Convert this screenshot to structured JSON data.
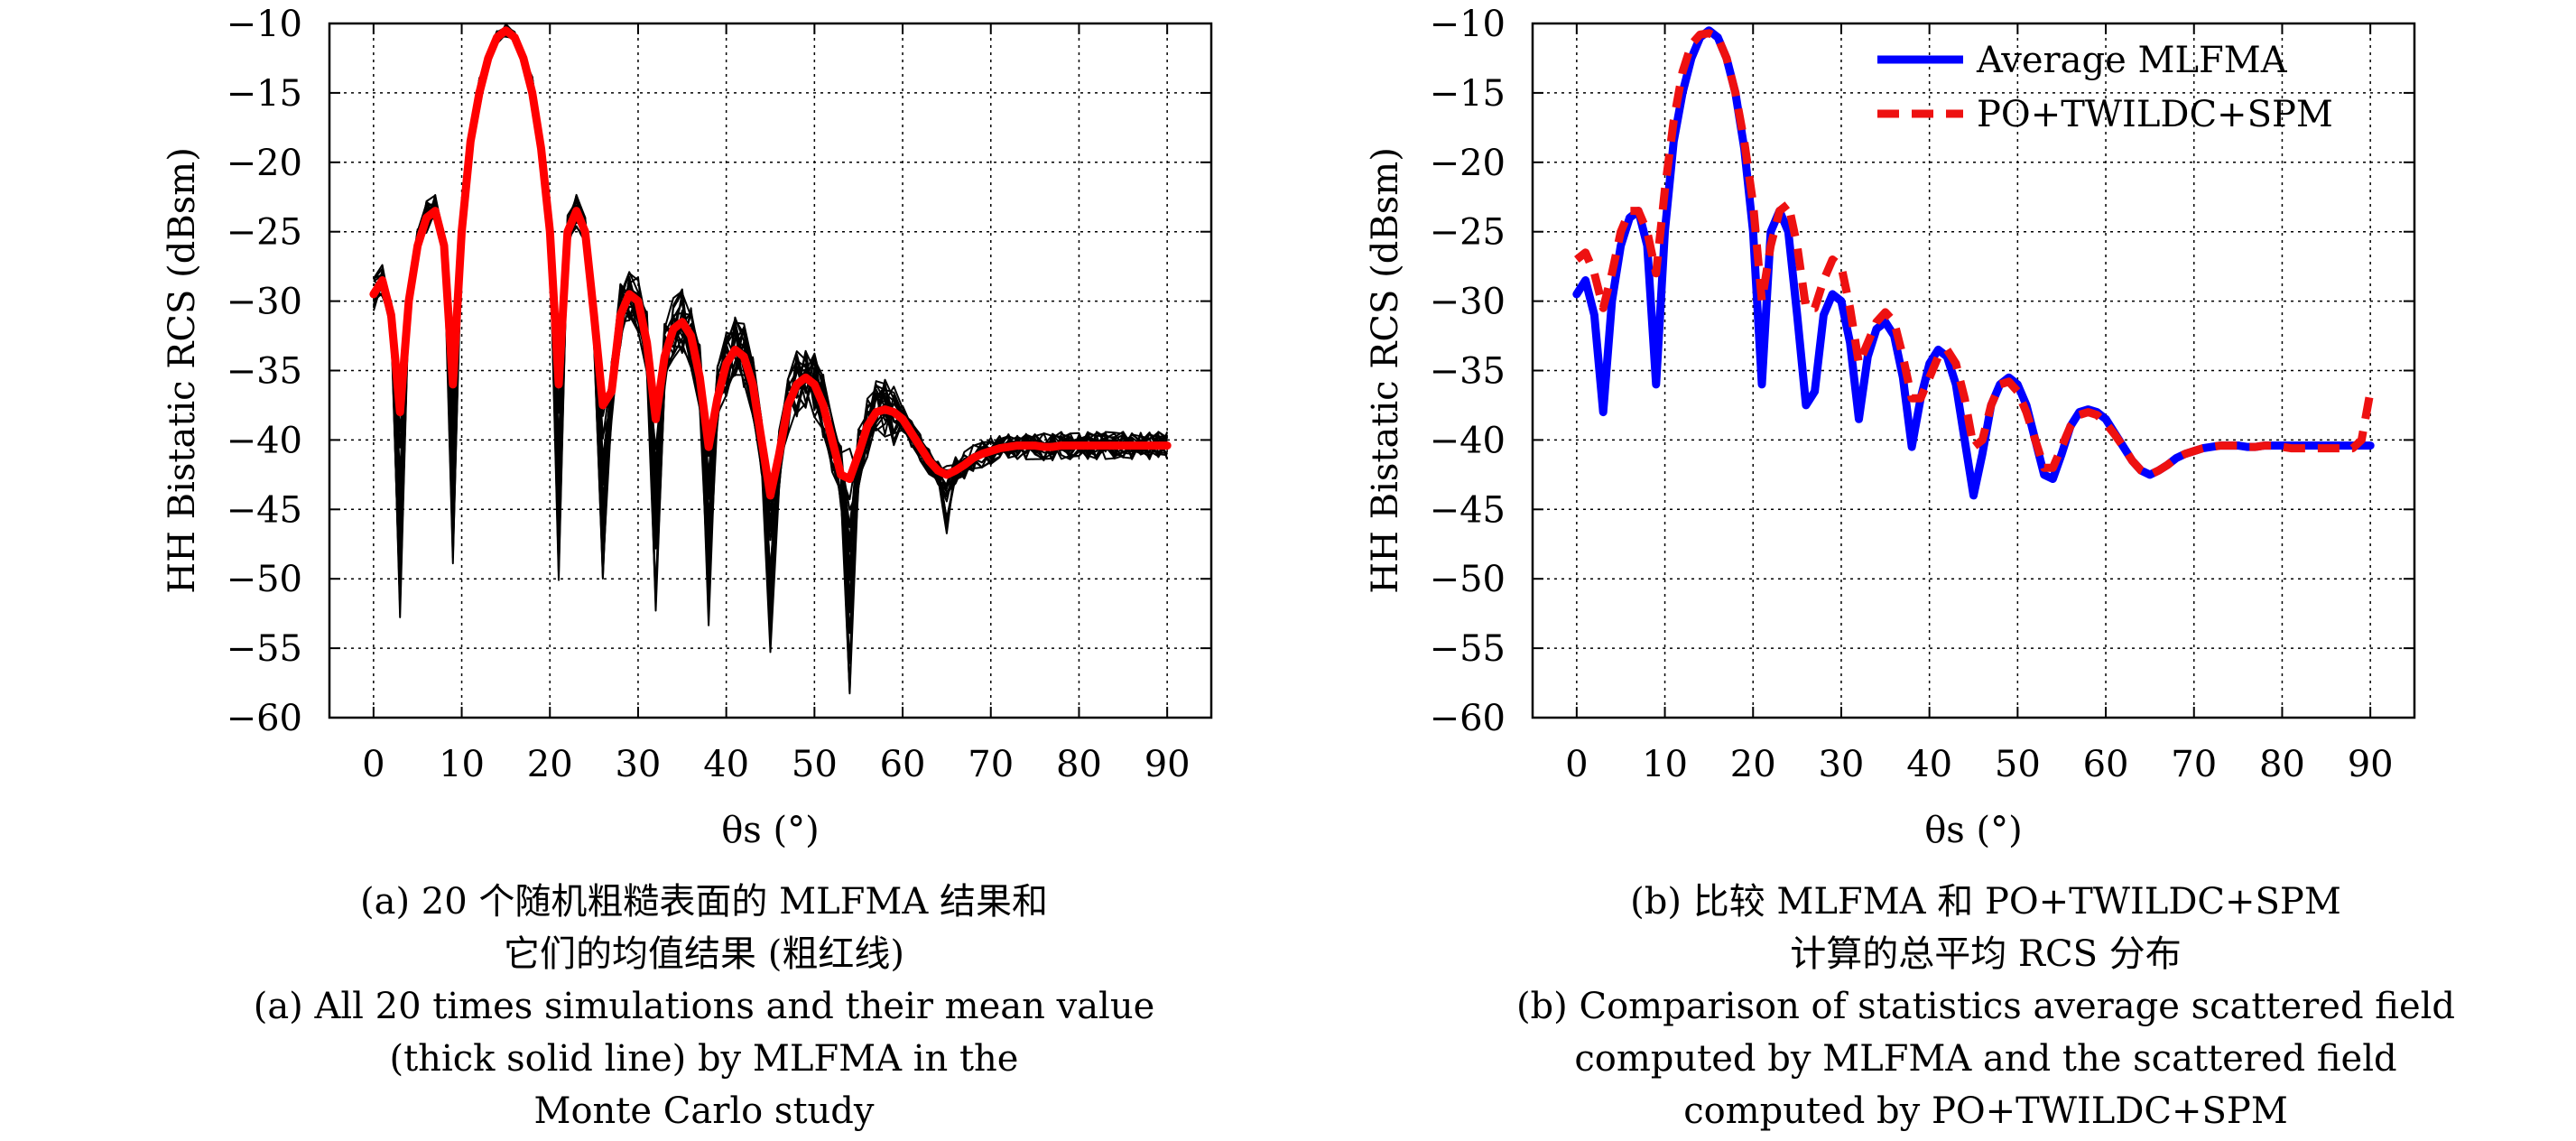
{
  "chart_data": [
    {
      "type": "line",
      "xlabel": "θs (°)",
      "ylabel": "HH Bistatic RCS (dBsm)",
      "xlim": [
        -5,
        95
      ],
      "ylim": [
        -60,
        -10
      ],
      "xticks": [
        0,
        10,
        20,
        30,
        40,
        50,
        60,
        70,
        80,
        90
      ],
      "yticks": [
        -10,
        -15,
        -20,
        -25,
        -30,
        -35,
        -40,
        -45,
        -50,
        -55,
        -60
      ],
      "grid": true,
      "series": [
        {
          "role": "mean",
          "color": "#ff0000",
          "x": [
            0,
            1,
            2,
            3,
            4,
            5,
            6,
            7,
            8,
            9,
            10,
            11,
            12,
            13,
            14,
            15,
            16,
            17,
            18,
            19,
            20,
            21,
            22,
            23,
            24,
            25,
            26,
            27,
            28,
            29,
            30,
            31,
            32,
            33,
            34,
            35,
            36,
            37,
            38,
            39,
            40,
            41,
            42,
            43,
            44,
            45,
            46,
            47,
            48,
            49,
            50,
            51,
            52,
            53,
            54,
            55,
            56,
            57,
            58,
            59,
            60,
            61,
            62,
            63,
            64,
            65,
            66,
            67,
            68,
            69,
            70,
            71,
            72,
            73,
            74,
            75,
            76,
            77,
            78,
            79,
            80,
            81,
            82,
            83,
            84,
            85,
            86,
            87,
            88,
            89,
            90
          ],
          "y": [
            -29.5,
            -28.5,
            -31,
            -38,
            -30,
            -26,
            -24,
            -23.5,
            -26,
            -36,
            -25,
            -18.5,
            -15,
            -12.5,
            -11,
            -10.5,
            -11,
            -12.5,
            -15,
            -19,
            -25,
            -36,
            -25,
            -23.5,
            -25,
            -31,
            -37.5,
            -36.5,
            -31,
            -29.5,
            -30,
            -33,
            -38.5,
            -34,
            -32,
            -31.5,
            -32.5,
            -35.5,
            -40.5,
            -37,
            -34.5,
            -33.5,
            -34,
            -36,
            -40,
            -44,
            -41,
            -37.5,
            -36,
            -35.5,
            -36,
            -37.5,
            -40,
            -42.5,
            -42.8,
            -41,
            -39,
            -38,
            -37.8,
            -38,
            -38.5,
            -39.5,
            -40.5,
            -41.5,
            -42.2,
            -42.5,
            -42.2,
            -41.8,
            -41.3,
            -41,
            -40.8,
            -40.6,
            -40.5,
            -40.4,
            -40.4,
            -40.4,
            -40.5,
            -40.5,
            -40.4,
            -40.4,
            -40.4,
            -40.4,
            -40.4,
            -40.4,
            -40.4,
            -40.4,
            -40.4,
            -40.4,
            -40.4,
            -40.4,
            -40.4
          ]
        }
      ],
      "simulations": {
        "count": 20,
        "color": "#000000"
      }
    },
    {
      "type": "line",
      "xlabel": "θs (°)",
      "ylabel": "HH Bistatic RCS (dBsm)",
      "xlim": [
        -5,
        95
      ],
      "ylim": [
        -60,
        -10
      ],
      "xticks": [
        0,
        10,
        20,
        30,
        40,
        50,
        60,
        70,
        80,
        90
      ],
      "yticks": [
        -10,
        -15,
        -20,
        -25,
        -30,
        -35,
        -40,
        -45,
        -50,
        -55,
        -60
      ],
      "grid": true,
      "legend_position": "top-right",
      "series": [
        {
          "name": "Average MLFMA",
          "color": "#0000ff",
          "style": "solid",
          "x": [
            0,
            1,
            2,
            3,
            4,
            5,
            6,
            7,
            8,
            9,
            10,
            11,
            12,
            13,
            14,
            15,
            16,
            17,
            18,
            19,
            20,
            21,
            22,
            23,
            24,
            25,
            26,
            27,
            28,
            29,
            30,
            31,
            32,
            33,
            34,
            35,
            36,
            37,
            38,
            39,
            40,
            41,
            42,
            43,
            44,
            45,
            46,
            47,
            48,
            49,
            50,
            51,
            52,
            53,
            54,
            55,
            56,
            57,
            58,
            59,
            60,
            61,
            62,
            63,
            64,
            65,
            66,
            67,
            68,
            69,
            70,
            71,
            72,
            73,
            74,
            75,
            76,
            77,
            78,
            79,
            80,
            81,
            82,
            83,
            84,
            85,
            86,
            87,
            88,
            89,
            90
          ],
          "y": [
            -29.5,
            -28.5,
            -31,
            -38,
            -30,
            -26,
            -24,
            -23.5,
            -26,
            -36,
            -25,
            -18.5,
            -15,
            -12.5,
            -11,
            -10.5,
            -11,
            -12.5,
            -15,
            -19,
            -25,
            -36,
            -25,
            -23.5,
            -25,
            -31,
            -37.5,
            -36.5,
            -31,
            -29.5,
            -30,
            -33,
            -38.5,
            -34,
            -32,
            -31.5,
            -32.5,
            -35.5,
            -40.5,
            -37,
            -34.5,
            -33.5,
            -34,
            -36,
            -40,
            -44,
            -41,
            -37.5,
            -36,
            -35.5,
            -36,
            -37.5,
            -40,
            -42.5,
            -42.8,
            -41,
            -39,
            -38,
            -37.8,
            -38,
            -38.5,
            -39.5,
            -40.5,
            -41.5,
            -42.2,
            -42.5,
            -42.2,
            -41.8,
            -41.3,
            -41,
            -40.8,
            -40.6,
            -40.5,
            -40.4,
            -40.4,
            -40.4,
            -40.5,
            -40.5,
            -40.4,
            -40.4,
            -40.4,
            -40.4,
            -40.4,
            -40.4,
            -40.4,
            -40.4,
            -40.4,
            -40.4,
            -40.4,
            -40.4,
            -40.4
          ]
        },
        {
          "name": "PO+TWILDC+SPM",
          "color": "#ee1111",
          "style": "dashed",
          "x": [
            0,
            1,
            2,
            3,
            4,
            5,
            6,
            7,
            8,
            9,
            10,
            11,
            12,
            13,
            14,
            15,
            16,
            17,
            18,
            19,
            20,
            21,
            22,
            23,
            24,
            25,
            26,
            27,
            28,
            29,
            30,
            31,
            32,
            33,
            34,
            35,
            36,
            37,
            38,
            39,
            40,
            41,
            42,
            43,
            44,
            45,
            46,
            47,
            48,
            49,
            50,
            51,
            52,
            53,
            54,
            55,
            56,
            57,
            58,
            59,
            60,
            61,
            62,
            63,
            64,
            65,
            66,
            67,
            68,
            69,
            70,
            71,
            72,
            73,
            74,
            75,
            76,
            77,
            78,
            79,
            80,
            81,
            82,
            83,
            84,
            85,
            86,
            87,
            88,
            89,
            90
          ],
          "y": [
            -27,
            -26.5,
            -28,
            -30.5,
            -28,
            -25,
            -23.5,
            -23.5,
            -25,
            -28,
            -22,
            -17,
            -13.5,
            -11.5,
            -10.8,
            -10.7,
            -11,
            -12.5,
            -15,
            -18.5,
            -23,
            -30,
            -26,
            -23.5,
            -23,
            -26,
            -30.5,
            -30.5,
            -28.5,
            -27,
            -27.5,
            -30.5,
            -34.5,
            -33,
            -31.5,
            -30.8,
            -31.5,
            -34,
            -37,
            -37,
            -35.5,
            -34,
            -33.5,
            -34.5,
            -37,
            -40.5,
            -40,
            -37.5,
            -36,
            -35.8,
            -36.5,
            -38,
            -40,
            -42,
            -42,
            -40.5,
            -39,
            -38.2,
            -38,
            -38.2,
            -38.8,
            -39.6,
            -40.5,
            -41.5,
            -42.2,
            -42.5,
            -42.2,
            -41.8,
            -41.3,
            -41,
            -40.8,
            -40.6,
            -40.5,
            -40.4,
            -40.4,
            -40.4,
            -40.5,
            -40.5,
            -40.4,
            -40.4,
            -40.5,
            -40.6,
            -40.6,
            -40.6,
            -40.6,
            -40.6,
            -40.6,
            -40.6,
            -40.6,
            -40.0,
            -36.5
          ]
        }
      ]
    }
  ],
  "captions": {
    "a": {
      "zh_line1": "(a) 20 个随机粗糙表面的 MLFMA 结果和",
      "zh_line2": "它们的均值结果 (粗红线)",
      "en_line1": "(a) All 20 times simulations and their mean value",
      "en_line2": "(thick solid line) by MLFMA in the",
      "en_line3": "Monte Carlo study"
    },
    "b": {
      "zh_line1": "(b) 比较 MLFMA 和 PO+TWILDC+SPM",
      "zh_line2": "计算的总平均 RCS 分布",
      "en_line1": "(b) Comparison of statistics average scattered field",
      "en_line2": "computed by MLFMA and the scattered field",
      "en_line3": "computed by PO+TWILDC+SPM"
    }
  }
}
